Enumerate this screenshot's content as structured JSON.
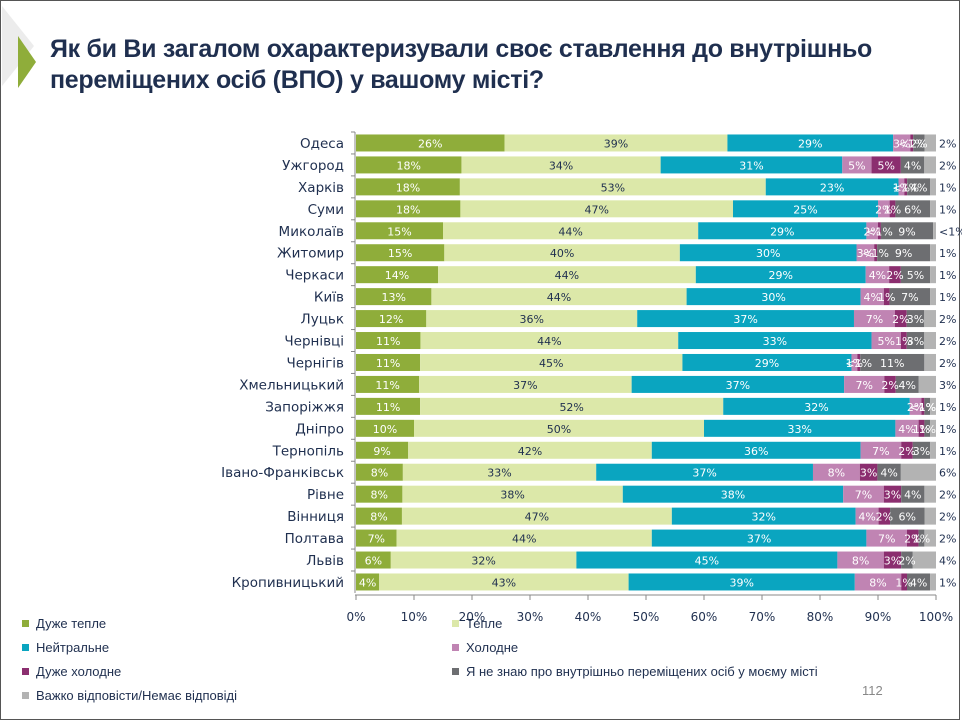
{
  "slide": {
    "title": "Як би Ви загалом охарактеризували своє ставлення до внутрішньо переміщених осіб (ВПО) у вашому місті?",
    "page_number": "112"
  },
  "chart_data": {
    "type": "bar",
    "orientation": "horizontal",
    "stacked": "percent",
    "title": "Як би Ви загалом охарактеризували своє ставлення до внутрішньо переміщених осіб (ВПО) у вашому місті?",
    "xlabel": "",
    "ylabel": "",
    "xlim": [
      0,
      100
    ],
    "x_ticks": [
      "0%",
      "10%",
      "20%",
      "30%",
      "40%",
      "50%",
      "60%",
      "70%",
      "80%",
      "90%",
      "100%"
    ],
    "grid": false,
    "legend_position": "bottom",
    "categories": [
      "Одеса",
      "Ужгород",
      "Харків",
      "Суми",
      "Миколаїв",
      "Житомир",
      "Черкаси",
      "Київ",
      "Луцьк",
      "Чернівці",
      "Чернігів",
      "Хмельницький",
      "Запоріжжя",
      "Дніпро",
      "Тернопіль",
      "Івано-Франківськ",
      "Рівне",
      "Вінниця",
      "Полтава",
      "Львів",
      "Кропивницький"
    ],
    "series": [
      {
        "name": "Дуже тепле",
        "color": "#8fad3a",
        "label_color": "#ffffff",
        "values": [
          26,
          18,
          18,
          18,
          15,
          15,
          14,
          13,
          12,
          11,
          11,
          11,
          11,
          10,
          9,
          8,
          8,
          8,
          7,
          6,
          4
        ],
        "labels": [
          "26%",
          "18%",
          "18%",
          "18%",
          "15%",
          "15%",
          "14%",
          "13%",
          "12%",
          "11%",
          "11%",
          "11%",
          "11%",
          "10%",
          "9%",
          "8%",
          "8%",
          "8%",
          "7%",
          "6%",
          "4%"
        ]
      },
      {
        "name": "Тепле",
        "color": "#dce8a9",
        "label_color": "#1f2f4f",
        "values": [
          39,
          34,
          53,
          47,
          44,
          40,
          44,
          44,
          36,
          44,
          45,
          37,
          52,
          50,
          42,
          33,
          38,
          47,
          44,
          32,
          43
        ],
        "labels": [
          "39%",
          "34%",
          "53%",
          "47%",
          "44%",
          "40%",
          "44%",
          "44%",
          "36%",
          "44%",
          "45%",
          "37%",
          "52%",
          "50%",
          "42%",
          "33%",
          "38%",
          "47%",
          "44%",
          "32%",
          "43%"
        ]
      },
      {
        "name": "Нейтральне",
        "color": "#0aa5c0",
        "label_color": "#ffffff",
        "values": [
          29,
          31,
          23,
          25,
          29,
          30,
          29,
          30,
          37,
          33,
          29,
          37,
          32,
          33,
          36,
          37,
          38,
          32,
          37,
          45,
          39
        ],
        "labels": [
          "29%",
          "31%",
          "23%",
          "25%",
          "29%",
          "30%",
          "29%",
          "30%",
          "37%",
          "33%",
          "29%",
          "37%",
          "32%",
          "33%",
          "36%",
          "37%",
          "38%",
          "32%",
          "37%",
          "45%",
          "39%"
        ]
      },
      {
        "name": "Холодне",
        "color": "#c084b3",
        "label_color": "#ffffff",
        "values": [
          3,
          5,
          1,
          2,
          2,
          3,
          4,
          4,
          7,
          5,
          1,
          7,
          2,
          4,
          7,
          8,
          7,
          4,
          7,
          8,
          8
        ],
        "labels": [
          "3%",
          "5%",
          "1%",
          "2%",
          "2%",
          "3%",
          "4%",
          "4%",
          "7%",
          "5%",
          "1%",
          "7%",
          "2%",
          "4%",
          "7%",
          "8%",
          "7%",
          "4%",
          "7%",
          "8%",
          "8%"
        ]
      },
      {
        "name": "Дуже холодне",
        "color": "#8b2e6f",
        "label_color": "#ffffff",
        "values": [
          0.5,
          5,
          0.5,
          1,
          0.5,
          0.5,
          2,
          1,
          2,
          1,
          0.5,
          2,
          0.5,
          1,
          2,
          3,
          3,
          2,
          2,
          3,
          1
        ],
        "labels": [
          "<1%",
          "5%",
          "<1%",
          "1%",
          "<1%",
          "<1%",
          "2%",
          "1%",
          "2%",
          "1%",
          "<1%",
          "2%",
          "<1%",
          "1%",
          "2%",
          "3%",
          "3%",
          "2%",
          "2%",
          "3%",
          "1%"
        ]
      },
      {
        "name": "Я не знаю про внутрішньо переміщених осіб у моєму місті",
        "color": "#6d6e71",
        "label_color": "#ffffff",
        "values": [
          2,
          4,
          4,
          6,
          9,
          9,
          5,
          7,
          3,
          3,
          11,
          4,
          1,
          1,
          3,
          4,
          4,
          6,
          1,
          2,
          4
        ],
        "labels": [
          "2%",
          "4%",
          "4%",
          "6%",
          "9%",
          "9%",
          "5%",
          "7%",
          "3%",
          "3%",
          "11%",
          "4%",
          "1%",
          "1%",
          "3%",
          "4%",
          "4%",
          "6%",
          "1%",
          "2%",
          "4%"
        ]
      },
      {
        "name": "Важко відповісти/Немає відповіді",
        "color": "#b3b3b3",
        "label_color": "#1f2f4f",
        "values": [
          2,
          2,
          1,
          1,
          0.5,
          1,
          1,
          1,
          2,
          2,
          2,
          3,
          1,
          1,
          1,
          6,
          2,
          2,
          2,
          4,
          1
        ],
        "labels": [
          "2%",
          "2%",
          "1%",
          "1%",
          "<1%",
          "1%",
          "1%",
          "1%",
          "2%",
          "2%",
          "2%",
          "3%",
          "1%",
          "1%",
          "1%",
          "6%",
          "2%",
          "2%",
          "2%",
          "4%",
          "1%"
        ]
      }
    ]
  },
  "legend": {
    "items": [
      {
        "label": "Дуже тепле",
        "color": "#8fad3a"
      },
      {
        "label": "Тепле",
        "color": "#dce8a9"
      },
      {
        "label": "Нейтральне",
        "color": "#0aa5c0"
      },
      {
        "label": "Холодне",
        "color": "#c084b3"
      },
      {
        "label": "Дуже холодне",
        "color": "#8b2e6f"
      },
      {
        "label": "Я не знаю про внутрішньо переміщених осіб у моєму місті",
        "color": "#6d6e71"
      },
      {
        "label": "Важко відповісти/Немає відповіді",
        "color": "#b3b3b3"
      }
    ]
  }
}
